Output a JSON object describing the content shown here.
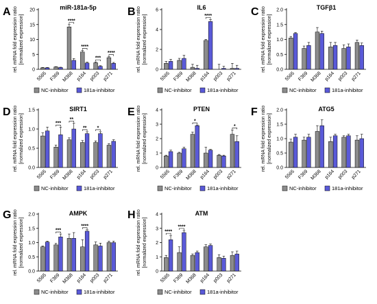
{
  "figure": {
    "categories": [
      "5565",
      "F369",
      "M368",
      "p164",
      "p003",
      "p271"
    ],
    "legend": {
      "nc": "NC-inhibitor",
      "inh": "181a-inhibitor"
    },
    "colors": {
      "nc": "#8c8c8c",
      "inh": "#5a5ad8",
      "axis": "#000000"
    },
    "ylabel_line1": "rel. mRNA fold expression ratio",
    "ylabel_line2": "[normalized expression]"
  },
  "chart_data": [
    {
      "panel": "A",
      "type": "bar",
      "title": "miR-181a-5p",
      "categories": [
        "5565",
        "F369",
        "M368",
        "p164",
        "p003",
        "p271"
      ],
      "ylim": [
        0,
        20
      ],
      "yticks": [
        0,
        5,
        10,
        15,
        20
      ],
      "series": [
        {
          "name": "NC-inhibitor",
          "values": [
            0.5,
            0.8,
            14.2,
            5.8,
            2.2,
            3.9
          ],
          "errors": [
            0.1,
            0.1,
            0.8,
            0.5,
            0.3,
            0.3
          ]
        },
        {
          "name": "181a-inhibitor",
          "values": [
            0.5,
            0.6,
            3.0,
            2.1,
            1.0,
            2.0
          ],
          "errors": [
            0.1,
            0.1,
            0.6,
            0.3,
            0.2,
            0.3
          ]
        }
      ],
      "significance": [
        {
          "category": "M368",
          "label": "****"
        },
        {
          "category": "p164",
          "label": "****"
        },
        {
          "category": "p003",
          "label": "***"
        },
        {
          "category": "p271",
          "label": "****"
        }
      ]
    },
    {
      "panel": "B",
      "type": "bar",
      "title": "IL6",
      "categories": [
        "5565",
        "F369",
        "M368",
        "p164",
        "p003",
        "p271"
      ],
      "ylim": [
        0,
        6
      ],
      "yticks": [
        0,
        2,
        4,
        6
      ],
      "series": [
        {
          "name": "NC-inhibitor",
          "values": [
            0.6,
            0.9,
            0.2,
            2.9,
            0.0,
            0.1
          ],
          "errors": [
            0.2,
            0.2,
            0.3,
            0.1,
            0.5,
            0.5
          ]
        },
        {
          "name": "181a-inhibitor",
          "values": [
            0.8,
            1.1,
            0.1,
            4.8,
            0.1,
            0.1
          ],
          "errors": [
            0.2,
            0.3,
            0.3,
            0.2,
            0.2,
            0.3
          ]
        }
      ],
      "significance": [
        {
          "category": "p164",
          "label": "****"
        }
      ]
    },
    {
      "panel": "C",
      "type": "bar",
      "title": "TGFβ1",
      "categories": [
        "5565",
        "F369",
        "M368",
        "p164",
        "p003",
        "p271"
      ],
      "ylim": [
        0,
        2.0
      ],
      "yticks": [
        0.0,
        0.5,
        1.0,
        1.5,
        2.0
      ],
      "series": [
        {
          "name": "NC-inhibitor",
          "values": [
            1.05,
            0.7,
            1.25,
            0.75,
            0.7,
            0.9
          ],
          "errors": [
            0.05,
            0.08,
            0.15,
            0.15,
            0.12,
            0.08
          ]
        },
        {
          "name": "181a-inhibitor",
          "values": [
            1.2,
            0.8,
            1.2,
            0.8,
            0.75,
            0.8
          ],
          "errors": [
            0.03,
            0.1,
            0.08,
            0.1,
            0.1,
            0.08
          ]
        }
      ],
      "significance": []
    },
    {
      "panel": "D",
      "type": "bar",
      "title": "SIRT1",
      "categories": [
        "5565",
        "F369",
        "M368",
        "p164",
        "p003",
        "p271"
      ],
      "ylim": [
        0,
        1.5
      ],
      "yticks": [
        0.0,
        0.5,
        1.0,
        1.5
      ],
      "series": [
        {
          "name": "NC-inhibitor",
          "values": [
            0.82,
            0.53,
            0.72,
            0.65,
            0.65,
            0.58
          ],
          "errors": [
            0.08,
            0.05,
            0.05,
            0.05,
            0.04,
            0.04
          ]
        },
        {
          "name": "181a-inhibitor",
          "values": [
            0.95,
            0.85,
            1.0,
            0.88,
            0.88,
            0.68
          ],
          "errors": [
            0.1,
            0.2,
            0.15,
            0.05,
            0.05,
            0.04
          ]
        }
      ],
      "significance": [
        {
          "category": "F369",
          "label": "***"
        },
        {
          "category": "M368",
          "label": "**"
        },
        {
          "category": "p164",
          "label": "**"
        },
        {
          "category": "p003",
          "label": "*"
        }
      ]
    },
    {
      "panel": "E",
      "type": "bar",
      "title": "PTEN",
      "categories": [
        "5565",
        "F369",
        "M368",
        "p164",
        "p003",
        "p271"
      ],
      "ylim": [
        0,
        4
      ],
      "yticks": [
        0,
        1,
        2,
        3,
        4
      ],
      "series": [
        {
          "name": "NC-inhibitor",
          "values": [
            0.8,
            1.0,
            2.3,
            1.0,
            0.85,
            2.3
          ],
          "errors": [
            0.05,
            0.05,
            0.15,
            0.4,
            0.05,
            0.3
          ]
        },
        {
          "name": "181a-inhibitor",
          "values": [
            1.1,
            1.3,
            2.9,
            1.2,
            0.8,
            1.8
          ],
          "errors": [
            0.1,
            0.1,
            0.05,
            0.05,
            0.05,
            0.4
          ]
        }
      ],
      "significance": [
        {
          "category": "M368",
          "label": "*"
        },
        {
          "category": "p271",
          "label": "*"
        }
      ]
    },
    {
      "panel": "F",
      "type": "bar",
      "title": "ATG5",
      "categories": [
        "5565",
        "F369",
        "M368",
        "p164",
        "p003",
        "p271"
      ],
      "ylim": [
        0,
        2.0
      ],
      "yticks": [
        0.0,
        0.5,
        1.0,
        1.5,
        2.0
      ],
      "series": [
        {
          "name": "NC-inhibitor",
          "values": [
            0.88,
            0.95,
            1.25,
            0.9,
            1.05,
            0.95
          ],
          "errors": [
            0.1,
            0.1,
            0.2,
            0.15,
            0.05,
            0.15
          ]
        },
        {
          "name": "181a-inhibitor",
          "values": [
            1.05,
            1.05,
            1.45,
            1.1,
            1.1,
            1.0
          ],
          "errors": [
            0.1,
            0.1,
            0.2,
            0.05,
            0.05,
            0.15
          ]
        }
      ],
      "significance": []
    },
    {
      "panel": "G",
      "type": "bar",
      "title": "AMPK",
      "categories": [
        "5565",
        "F369",
        "M368",
        "p164",
        "p003",
        "p271"
      ],
      "ylim": [
        0,
        2.0
      ],
      "yticks": [
        0.0,
        0.5,
        1.0,
        1.5,
        2.0
      ],
      "series": [
        {
          "name": "NC-inhibitor",
          "values": [
            0.85,
            0.92,
            1.15,
            0.85,
            0.92,
            1.0
          ],
          "errors": [
            0.03,
            0.05,
            0.15,
            0.25,
            0.1,
            0.05
          ]
        },
        {
          "name": "181a-inhibitor",
          "values": [
            1.02,
            1.2,
            1.15,
            1.4,
            0.88,
            1.0
          ],
          "errors": [
            0.03,
            0.1,
            0.2,
            0.05,
            0.1,
            0.05
          ]
        }
      ],
      "significance": [
        {
          "category": "F369",
          "label": "***"
        },
        {
          "category": "p164",
          "label": "****"
        }
      ]
    },
    {
      "panel": "H",
      "type": "bar",
      "title": "ATM",
      "categories": [
        "5565",
        "F369",
        "M368",
        "p164",
        "p003",
        "p271"
      ],
      "ylim": [
        0,
        4
      ],
      "yticks": [
        0,
        1,
        2,
        3,
        4
      ],
      "series": [
        {
          "name": "NC-inhibitor",
          "values": [
            0.95,
            1.3,
            1.1,
            1.7,
            0.95,
            1.1
          ],
          "errors": [
            0.15,
            0.4,
            0.1,
            0.15,
            0.2,
            0.25
          ]
        },
        {
          "name": "181a-inhibitor",
          "values": [
            2.2,
            2.7,
            1.3,
            1.8,
            0.9,
            1.2
          ],
          "errors": [
            0.3,
            0.15,
            0.1,
            0.1,
            0.15,
            0.2
          ]
        }
      ],
      "significance": [
        {
          "category": "5565",
          "label": "****"
        },
        {
          "category": "F369",
          "label": "****"
        }
      ]
    }
  ]
}
